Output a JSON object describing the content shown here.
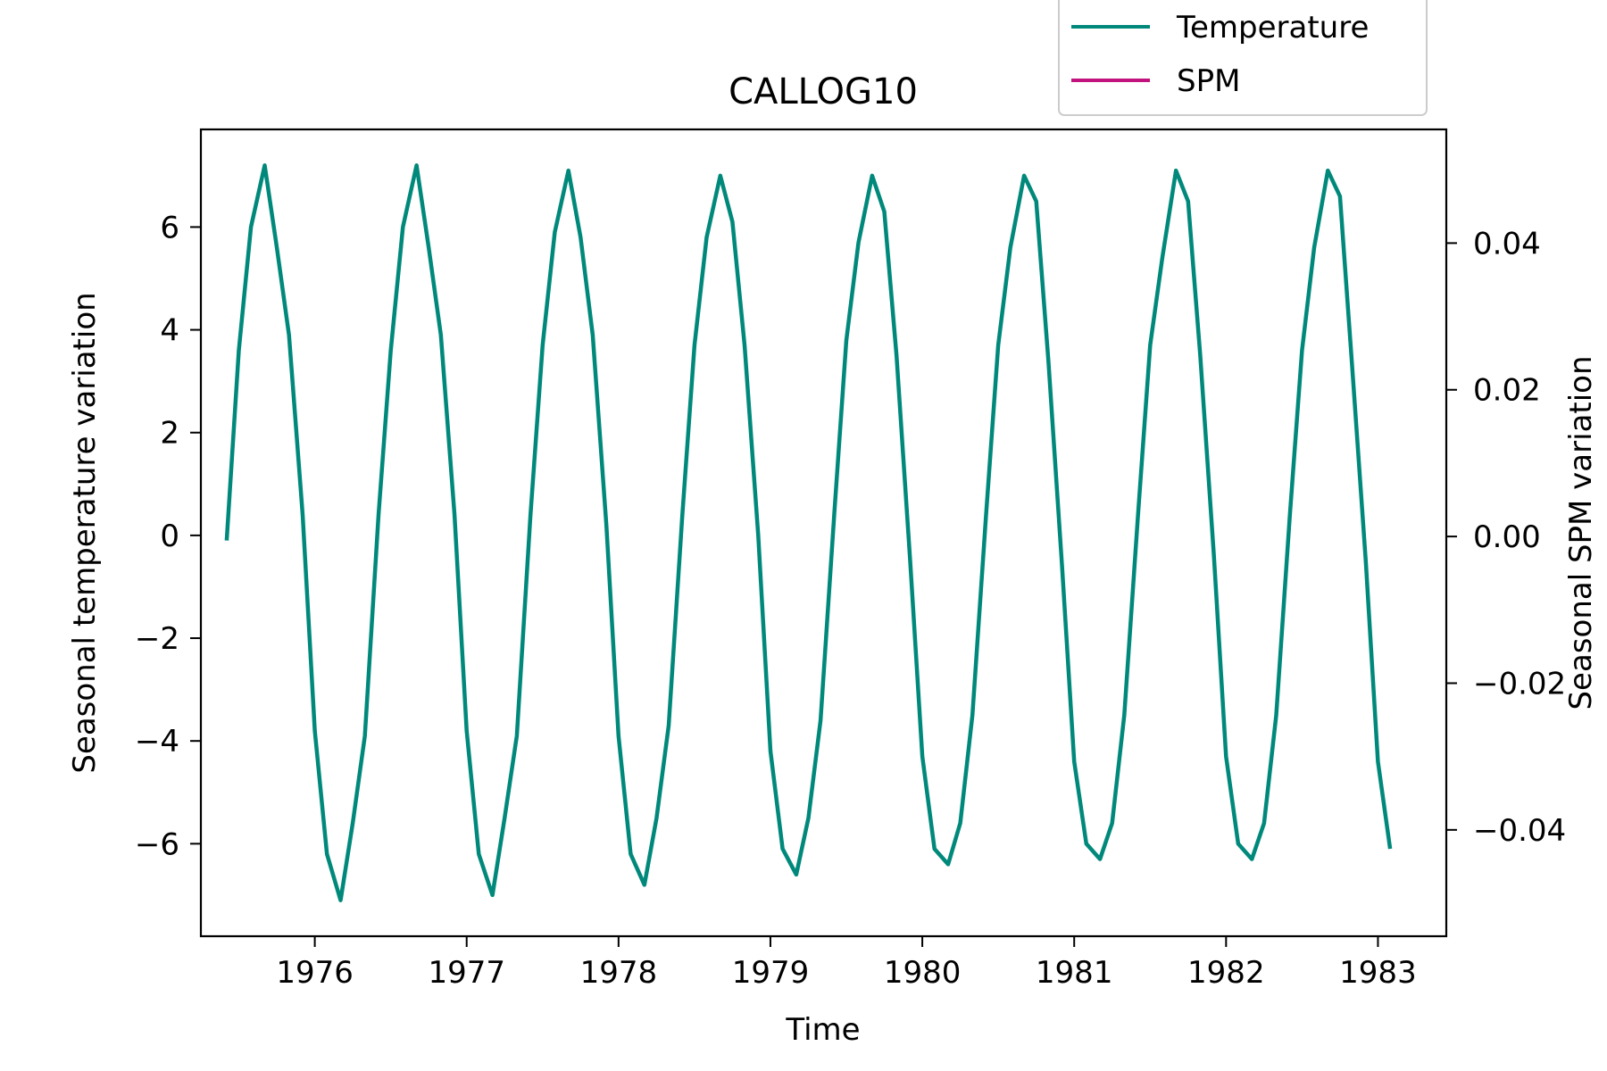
{
  "chart_data": {
    "type": "line",
    "title": "CALLOG10",
    "xlabel": "Time",
    "ylabel": "Seasonal temperature variation",
    "y2label": "Seasonal SPM variation",
    "xlim": [
      1975.25,
      1983.45
    ],
    "ylim": [
      -7.8,
      7.9
    ],
    "y2lim": [
      -0.0545,
      0.0555
    ],
    "xticks": [
      1976,
      1977,
      1978,
      1979,
      1980,
      1981,
      1982,
      1983
    ],
    "yticks": [
      -6,
      -4,
      -2,
      0,
      2,
      4,
      6
    ],
    "y2ticks": [
      -0.04,
      -0.02,
      0.0,
      0.02,
      0.04
    ],
    "y2tick_labels": [
      "−0.04",
      "−0.02",
      "0.00",
      "0.02",
      "0.04"
    ],
    "legend_position": "top-right",
    "grid": false,
    "colors": {
      "temperature": "#00897b",
      "spm": "#c2127e"
    },
    "series": [
      {
        "name": "Temperature",
        "axis": "left",
        "x": [
          1975.42,
          1975.5,
          1975.58,
          1975.67,
          1975.75,
          1975.83,
          1975.92,
          1976.0,
          1976.08,
          1976.17,
          1976.25,
          1976.33,
          1976.42,
          1976.5,
          1976.58,
          1976.67,
          1976.75,
          1976.83,
          1976.92,
          1977.0,
          1977.08,
          1977.17,
          1977.25,
          1977.33,
          1977.42,
          1977.5,
          1977.58,
          1977.67,
          1977.75,
          1977.83,
          1977.92,
          1978.0,
          1978.08,
          1978.17,
          1978.25,
          1978.33,
          1978.42,
          1978.5,
          1978.58,
          1978.67,
          1978.75,
          1978.83,
          1978.92,
          1979.0,
          1979.08,
          1979.17,
          1979.25,
          1979.33,
          1979.42,
          1979.5,
          1979.58,
          1979.67,
          1979.75,
          1979.83,
          1979.92,
          1980.0,
          1980.08,
          1980.17,
          1980.25,
          1980.33,
          1980.42,
          1980.5,
          1980.58,
          1980.67,
          1980.75,
          1980.83,
          1980.92,
          1981.0,
          1981.08,
          1981.17,
          1981.25,
          1981.33,
          1981.42,
          1981.5,
          1981.58,
          1981.67,
          1981.75,
          1981.83,
          1981.92,
          1982.0,
          1982.08,
          1982.17,
          1982.25,
          1982.33,
          1982.42,
          1982.5,
          1982.58,
          1982.67,
          1982.75,
          1982.83,
          1982.92,
          1983.0,
          1983.08
        ],
        "values": [
          -0.1,
          3.6,
          6.0,
          7.2,
          5.6,
          3.9,
          0.4,
          -3.8,
          -6.2,
          -7.1,
          -5.6,
          -3.9,
          0.4,
          3.6,
          6.0,
          7.2,
          5.6,
          3.9,
          0.4,
          -3.8,
          -6.2,
          -7.0,
          -5.5,
          -3.9,
          0.4,
          3.7,
          5.9,
          7.1,
          5.8,
          3.9,
          0.2,
          -3.9,
          -6.2,
          -6.8,
          -5.5,
          -3.7,
          0.4,
          3.7,
          5.8,
          7.0,
          6.1,
          3.7,
          0.0,
          -4.2,
          -6.1,
          -6.6,
          -5.5,
          -3.6,
          0.4,
          3.8,
          5.7,
          7.0,
          6.3,
          3.5,
          -0.5,
          -4.3,
          -6.1,
          -6.4,
          -5.6,
          -3.5,
          0.4,
          3.7,
          5.6,
          7.0,
          6.5,
          3.4,
          -0.6,
          -4.4,
          -6.0,
          -6.3,
          -5.6,
          -3.5,
          0.4,
          3.7,
          5.4,
          7.1,
          6.5,
          3.5,
          -0.4,
          -4.3,
          -6.0,
          -6.3,
          -5.6,
          -3.5,
          0.4,
          3.6,
          5.6,
          7.1,
          6.6,
          3.3,
          -0.5,
          -4.4,
          -6.1
        ]
      },
      {
        "name": "SPM",
        "axis": "right",
        "x": [],
        "values": []
      }
    ]
  }
}
